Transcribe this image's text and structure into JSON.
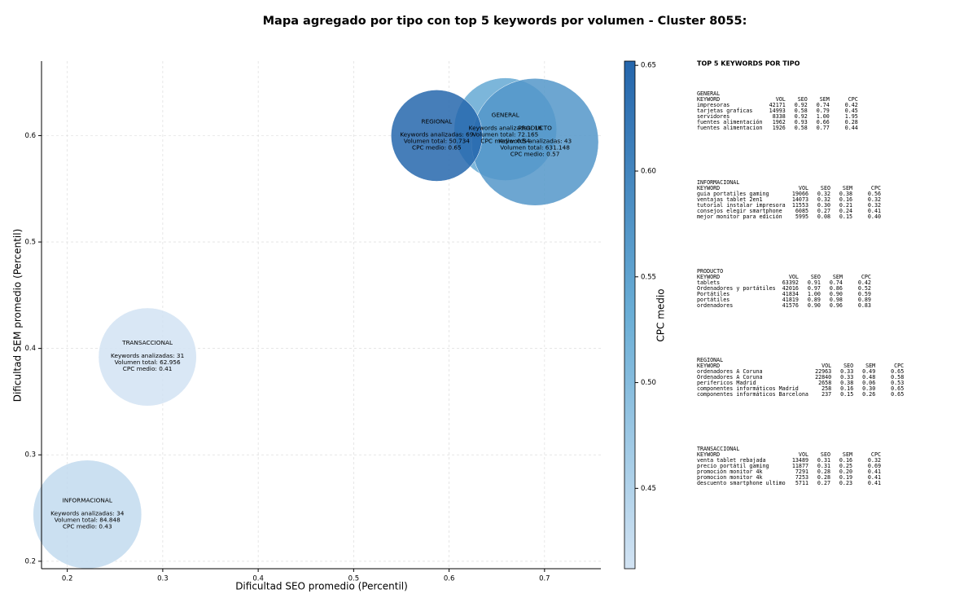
{
  "chart_data": {
    "type": "bubble",
    "title": "Mapa agregado por tipo con top 5 keywords por volumen - Cluster 8055:",
    "x_label": "Dificultad SEO promedio (Percentil)",
    "y_label": "Dificultad SEM promedio (Percentil)",
    "xlim": [
      0.173,
      0.759
    ],
    "ylim": [
      0.193,
      0.67
    ],
    "xticks": [
      0.2,
      0.3,
      0.4,
      0.5,
      0.6,
      0.7
    ],
    "yticks": [
      0.2,
      0.3,
      0.4,
      0.5,
      0.6
    ],
    "grid": true,
    "colorbar": {
      "label": "CPC medio",
      "lim": [
        0.412,
        0.652
      ],
      "ticks": [
        0.45,
        {
          "value": 0.5,
          "label": "0.50"
        },
        0.55,
        {
          "value": 0.6,
          "label": "0.60"
        },
        0.65
      ],
      "colormap": [
        "#d2e3f3",
        "#6aaed6",
        "#2566ac"
      ]
    },
    "points": [
      {
        "name": "GENERAL",
        "x": 0.659,
        "y": 0.606,
        "volume": 72165,
        "cpc": 0.54,
        "label": [
          "Keywords analizadas: 16",
          "Volumen total: 72.165",
          "CPC medio: 0.54"
        ]
      },
      {
        "name": "INFORMACIONAL",
        "x": 0.221,
        "y": 0.244,
        "volume": 84848,
        "cpc": 0.43,
        "label": [
          "Keywords analizadas: 34",
          "Volumen total: 84.848",
          "CPC medio: 0.43"
        ]
      },
      {
        "name": "PRODUCTO",
        "x": 0.69,
        "y": 0.594,
        "volume": 631148,
        "cpc": 0.57,
        "label": [
          "Keywords analizadas: 43",
          "Volumen total: 631.148",
          "CPC medio: 0.57"
        ]
      },
      {
        "name": "REGIONAL",
        "x": 0.587,
        "y": 0.6,
        "volume": 50734,
        "cpc": 0.65,
        "label": [
          "Keywords analizadas: 69",
          "Volumen total: 50.734",
          "CPC medio: 0.65"
        ]
      },
      {
        "name": "TRANSACCIONAL",
        "x": 0.284,
        "y": 0.392,
        "volume": 62956,
        "cpc": 0.41,
        "label": [
          "Keywords analizadas: 31",
          "Volumen total: 62.956",
          "CPC medio: 0.41"
        ]
      }
    ],
    "panel": {
      "title": "TOP 5 KEYWORDS POR TIPO",
      "header": [
        "KEYWORD",
        "VOL",
        "SEO",
        "SEM",
        "CPC"
      ],
      "tables": [
        {
          "title": "GENERAL",
          "rows": [
            [
              "impresoras",
              "42171",
              "0.92",
              "0.74",
              "0.42"
            ],
            [
              "tarjetas graficas",
              "14993",
              "0.58",
              "0.79",
              "0.45"
            ],
            [
              "servidores",
              "8338",
              "0.92",
              "1.00",
              "1.95"
            ],
            [
              "fuentes alimentación",
              "1962",
              "0.93",
              "0.66",
              "0.28"
            ],
            [
              "fuentes alimentacion",
              "1926",
              "0.58",
              "0.77",
              "0.44"
            ]
          ]
        },
        {
          "title": "INFORMACIONAL",
          "rows": [
            [
              "guia portatiles gaming",
              "19066",
              "0.32",
              "0.38",
              "0.56"
            ],
            [
              "ventajas tablet 2en1",
              "14073",
              "0.32",
              "0.16",
              "0.32"
            ],
            [
              "tutorial instalar impresora",
              "11553",
              "0.30",
              "0.21",
              "0.32"
            ],
            [
              "consejos elegir smartphone",
              "6085",
              "0.27",
              "0.24",
              "0.41"
            ],
            [
              "mejor monitor para edición",
              "5995",
              "0.08",
              "0.15",
              "0.40"
            ]
          ]
        },
        {
          "title": "PRODUCTO",
          "rows": [
            [
              "tablets",
              "63392",
              "0.91",
              "0.74",
              "0.42"
            ],
            [
              "Ordenadores y portátiles",
              "42016",
              "0.97",
              "0.86",
              "0.52"
            ],
            [
              "Portátiles",
              "41834",
              "1.00",
              "0.90",
              "0.59"
            ],
            [
              "portátiles",
              "41819",
              "0.89",
              "0.98",
              "0.89"
            ],
            [
              "ordenadores",
              "41576",
              "0.90",
              "0.96",
              "0.83"
            ]
          ]
        },
        {
          "title": "REGIONAL",
          "rows": [
            [
              "ordenadores A Coruna",
              "22963",
              "0.33",
              "0.49",
              "0.65"
            ],
            [
              "Ordenadores A Coruna",
              "22840",
              "0.33",
              "0.48",
              "0.58"
            ],
            [
              "perifericos Madrid",
              "2658",
              "0.38",
              "0.06",
              "0.53"
            ],
            [
              "componentes informáticos Madrid",
              "258",
              "0.16",
              "0.30",
              "0.65"
            ],
            [
              "componentes informáticos Barcelona",
              "237",
              "0.15",
              "0.26",
              "0.65"
            ]
          ]
        },
        {
          "title": "TRANSACCIONAL",
          "rows": [
            [
              "venta tablet rebajada",
              "13489",
              "0.31",
              "0.16",
              "0.32"
            ],
            [
              "precio portátil gaming",
              "11877",
              "0.31",
              "0.25",
              "0.69"
            ],
            [
              "promoción monitor 4k",
              "7291",
              "0.28",
              "0.20",
              "0.41"
            ],
            [
              "promocion monitor 4k",
              "7253",
              "0.28",
              "0.19",
              "0.41"
            ],
            [
              "descuento smartphone ultimo",
              "5711",
              "0.27",
              "0.23",
              "0.41"
            ]
          ]
        }
      ]
    }
  }
}
